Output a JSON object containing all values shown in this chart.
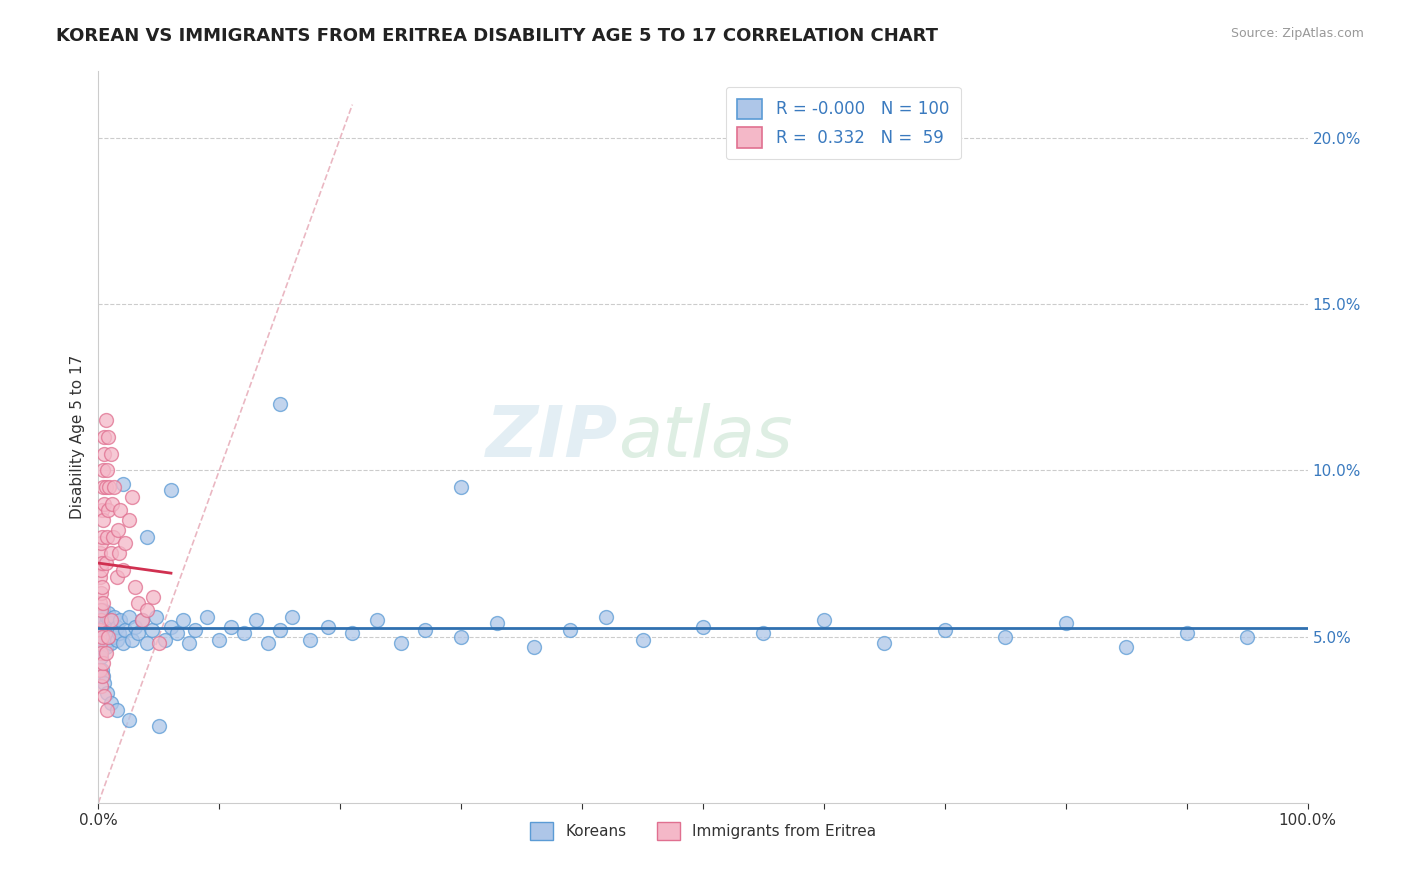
{
  "title": "KOREAN VS IMMIGRANTS FROM ERITREA DISABILITY AGE 5 TO 17 CORRELATION CHART",
  "source": "Source: ZipAtlas.com",
  "ylabel": "Disability Age 5 to 17",
  "xlim": [
    0,
    1.0
  ],
  "ylim": [
    0,
    0.22
  ],
  "xticks": [
    0.0,
    0.1,
    0.2,
    0.3,
    0.4,
    0.5,
    0.6,
    0.7,
    0.8,
    0.9,
    1.0
  ],
  "xticklabels": [
    "0.0%",
    "",
    "",
    "",
    "",
    "",
    "",
    "",
    "",
    "",
    "100.0%"
  ],
  "yticks": [
    0.05,
    0.1,
    0.15,
    0.2
  ],
  "yticklabels": [
    "5.0%",
    "10.0%",
    "15.0%",
    "20.0%"
  ],
  "korean_color": "#aec6e8",
  "eritrea_color": "#f4b8c8",
  "korean_edge": "#5b9bd5",
  "eritrea_edge": "#e07090",
  "trendline_korean_color": "#3070b0",
  "trendline_eritrea_color": "#d03050",
  "diagonal_color": "#e8b0bc",
  "r_korean": "-0.000",
  "n_korean": "100",
  "r_eritrea": "0.332",
  "n_eritrea": "59",
  "watermark_zip": "ZIP",
  "watermark_atlas": "atlas",
  "legend_korean_label": "Koreans",
  "legend_eritrea_label": "Immigrants from Eritrea",
  "korean_x": [
    0.001,
    0.001,
    0.001,
    0.002,
    0.002,
    0.002,
    0.002,
    0.003,
    0.003,
    0.003,
    0.003,
    0.003,
    0.004,
    0.004,
    0.004,
    0.004,
    0.005,
    0.005,
    0.005,
    0.005,
    0.006,
    0.006,
    0.006,
    0.007,
    0.007,
    0.008,
    0.008,
    0.008,
    0.009,
    0.009,
    0.01,
    0.01,
    0.011,
    0.012,
    0.013,
    0.015,
    0.015,
    0.017,
    0.018,
    0.02,
    0.022,
    0.025,
    0.028,
    0.03,
    0.033,
    0.036,
    0.04,
    0.044,
    0.048,
    0.055,
    0.06,
    0.065,
    0.07,
    0.075,
    0.08,
    0.09,
    0.1,
    0.11,
    0.12,
    0.13,
    0.14,
    0.15,
    0.16,
    0.175,
    0.19,
    0.21,
    0.23,
    0.25,
    0.27,
    0.3,
    0.33,
    0.36,
    0.39,
    0.42,
    0.45,
    0.5,
    0.55,
    0.6,
    0.65,
    0.7,
    0.75,
    0.8,
    0.85,
    0.9,
    0.95,
    0.02,
    0.04,
    0.06,
    0.15,
    0.3,
    0.001,
    0.002,
    0.003,
    0.004,
    0.005,
    0.007,
    0.01,
    0.015,
    0.025,
    0.05
  ],
  "korean_y": [
    0.052,
    0.048,
    0.055,
    0.05,
    0.053,
    0.047,
    0.057,
    0.049,
    0.054,
    0.051,
    0.056,
    0.046,
    0.052,
    0.058,
    0.049,
    0.053,
    0.051,
    0.055,
    0.048,
    0.053,
    0.05,
    0.054,
    0.047,
    0.052,
    0.056,
    0.049,
    0.053,
    0.057,
    0.051,
    0.055,
    0.048,
    0.054,
    0.052,
    0.05,
    0.056,
    0.049,
    0.053,
    0.051,
    0.055,
    0.048,
    0.052,
    0.056,
    0.049,
    0.053,
    0.051,
    0.055,
    0.048,
    0.052,
    0.056,
    0.049,
    0.053,
    0.051,
    0.055,
    0.048,
    0.052,
    0.056,
    0.049,
    0.053,
    0.051,
    0.055,
    0.048,
    0.052,
    0.056,
    0.049,
    0.053,
    0.051,
    0.055,
    0.048,
    0.052,
    0.05,
    0.054,
    0.047,
    0.052,
    0.056,
    0.049,
    0.053,
    0.051,
    0.055,
    0.048,
    0.052,
    0.05,
    0.054,
    0.047,
    0.051,
    0.05,
    0.096,
    0.08,
    0.094,
    0.12,
    0.095,
    0.058,
    0.044,
    0.04,
    0.038,
    0.036,
    0.033,
    0.03,
    0.028,
    0.025,
    0.023
  ],
  "eritrea_x": [
    0.001,
    0.001,
    0.001,
    0.001,
    0.001,
    0.002,
    0.002,
    0.002,
    0.002,
    0.002,
    0.002,
    0.003,
    0.003,
    0.003,
    0.003,
    0.003,
    0.004,
    0.004,
    0.004,
    0.004,
    0.005,
    0.005,
    0.005,
    0.006,
    0.006,
    0.006,
    0.007,
    0.007,
    0.008,
    0.008,
    0.009,
    0.01,
    0.01,
    0.011,
    0.012,
    0.013,
    0.015,
    0.016,
    0.017,
    0.018,
    0.02,
    0.022,
    0.025,
    0.028,
    0.03,
    0.033,
    0.036,
    0.04,
    0.045,
    0.05,
    0.001,
    0.002,
    0.003,
    0.004,
    0.005,
    0.006,
    0.007,
    0.008,
    0.01
  ],
  "eritrea_y": [
    0.052,
    0.06,
    0.068,
    0.048,
    0.075,
    0.055,
    0.063,
    0.07,
    0.045,
    0.078,
    0.058,
    0.065,
    0.072,
    0.05,
    0.08,
    0.088,
    0.06,
    0.095,
    0.1,
    0.085,
    0.09,
    0.105,
    0.11,
    0.072,
    0.095,
    0.115,
    0.08,
    0.1,
    0.088,
    0.11,
    0.095,
    0.075,
    0.105,
    0.09,
    0.08,
    0.095,
    0.068,
    0.082,
    0.075,
    0.088,
    0.07,
    0.078,
    0.085,
    0.092,
    0.065,
    0.06,
    0.055,
    0.058,
    0.062,
    0.048,
    0.04,
    0.035,
    0.038,
    0.042,
    0.032,
    0.045,
    0.028,
    0.05,
    0.055
  ]
}
